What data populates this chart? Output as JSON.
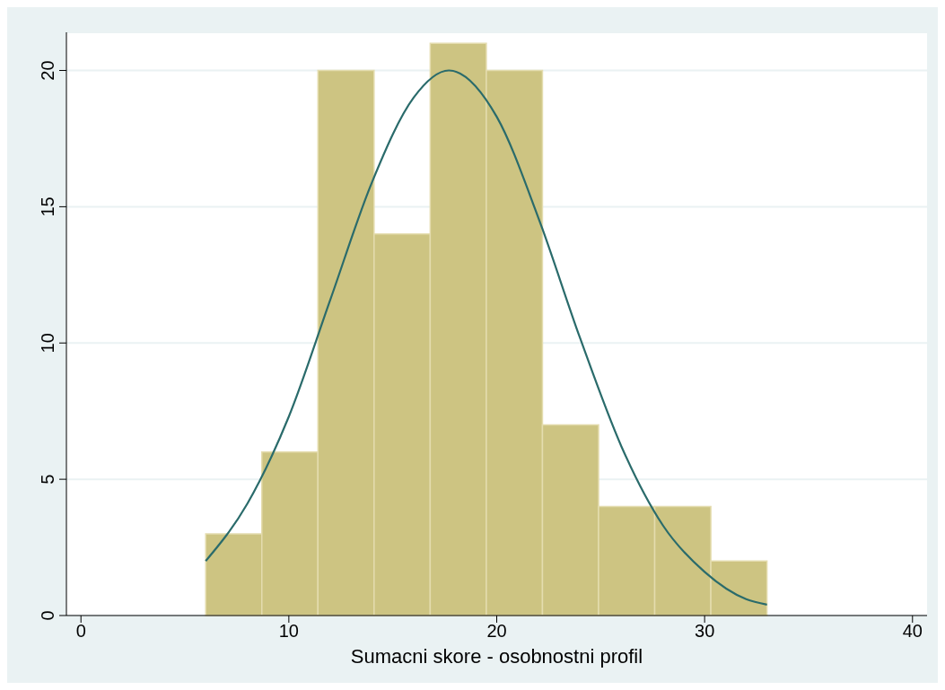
{
  "chart_data": {
    "type": "histogram",
    "xlabel": "Sumacni skore - osobnostni profil",
    "bins": [
      6,
      8.7,
      11.4,
      14.1,
      16.8,
      19.5,
      22.2,
      24.9,
      27.6,
      30.3,
      33
    ],
    "values": [
      3,
      6,
      20,
      14,
      21,
      20,
      7,
      4,
      4,
      2
    ],
    "color": "#cdc482",
    "series": [
      {
        "type": "line",
        "color": "#2a6b6b",
        "x": [
          6,
          8,
          10,
          12,
          14,
          16,
          17.7,
          20,
          22,
          24,
          26,
          28,
          30,
          32,
          33
        ],
        "values": [
          2,
          4.1,
          7.3,
          11.6,
          15.9,
          19,
          20,
          18.3,
          14.6,
          10.2,
          6.2,
          3.3,
          1.6,
          0.6,
          0.4
        ]
      }
    ],
    "xlim": [
      -0.7,
      40.7
    ],
    "ylim": [
      0,
      21.4
    ],
    "xticks": [
      0,
      10,
      20,
      30,
      40
    ],
    "yticks": [
      0,
      5,
      10,
      15,
      20
    ],
    "grid": "y",
    "legend": false
  }
}
